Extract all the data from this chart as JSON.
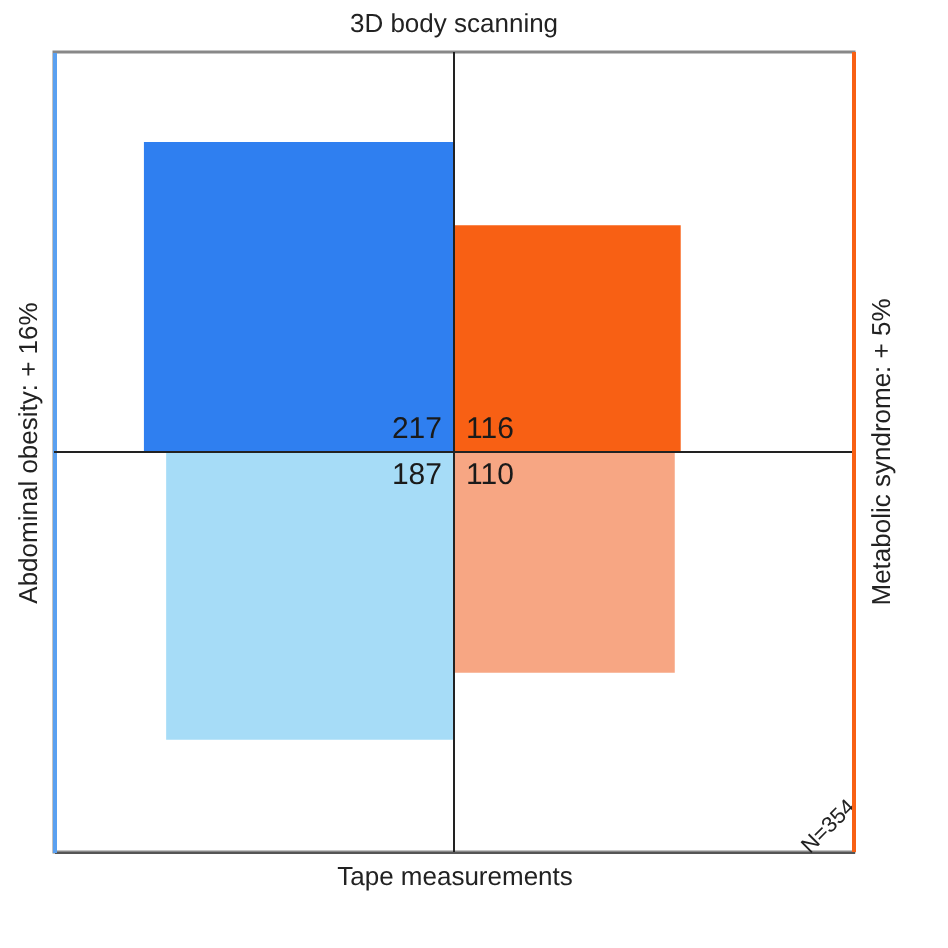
{
  "chart_data": {
    "type": "other",
    "title": "3D body scanning",
    "xlabel": "Tape measurements",
    "ylabel": "Abdominal obesity: + 16%",
    "y2label": "Metabolic syndrome: + 5%",
    "categories": [
      null,
      null,
      null,
      null
    ],
    "values": [
      217,
      116,
      187,
      110
    ],
    "colors": [
      "#2f7ff0",
      "#f86014",
      "#a6dcf7",
      "#f7a683"
    ],
    "data_labels": true,
    "annotations": [
      "N=354"
    ]
  }
}
